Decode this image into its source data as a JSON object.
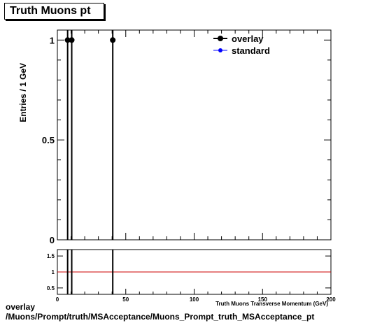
{
  "title": "Truth Muons pt",
  "footer": {
    "line1": "overlay",
    "line2": "/Muons/Prompt/truth/MSAcceptance/Muons_Prompt_truth_MSAcceptance_pt"
  },
  "colors": {
    "overlay": "#000000",
    "standard": "#0000ff",
    "ratio_line": "#cc0000"
  },
  "chart_data": [
    {
      "type": "scatter",
      "ylabel": "Entries / 1 GeV",
      "xlabel": "Truth Muons Transverse Momentum (GeV)",
      "xlim": [
        0,
        200
      ],
      "ylim": [
        0,
        1.05
      ],
      "yticks": [
        0,
        0.5,
        1
      ],
      "ytick_labels": [
        "0",
        "0.5",
        "1"
      ],
      "legend": {
        "position": "top-right",
        "entries": [
          "overlay",
          "standard"
        ]
      },
      "series": [
        {
          "name": "overlay",
          "x": [
            7.5,
            10.5,
            40.5
          ],
          "y": [
            1,
            1,
            1
          ],
          "yerr": [
            1,
            1,
            1
          ]
        },
        {
          "name": "standard",
          "x": [],
          "y": []
        }
      ]
    },
    {
      "type": "line",
      "xlim": [
        0,
        200
      ],
      "ylim": [
        0.3,
        1.7
      ],
      "yticks": [
        0.5,
        1,
        1.5
      ],
      "ytick_labels": [
        "0.5",
        "1",
        "1.5"
      ],
      "xticks": [
        0,
        50,
        100,
        150,
        200
      ],
      "xtick_labels": [
        "0",
        "50",
        "100",
        "150",
        "200"
      ],
      "reference_line": 1,
      "error_bar_x": [
        7.5,
        10.5,
        40.5
      ]
    }
  ]
}
